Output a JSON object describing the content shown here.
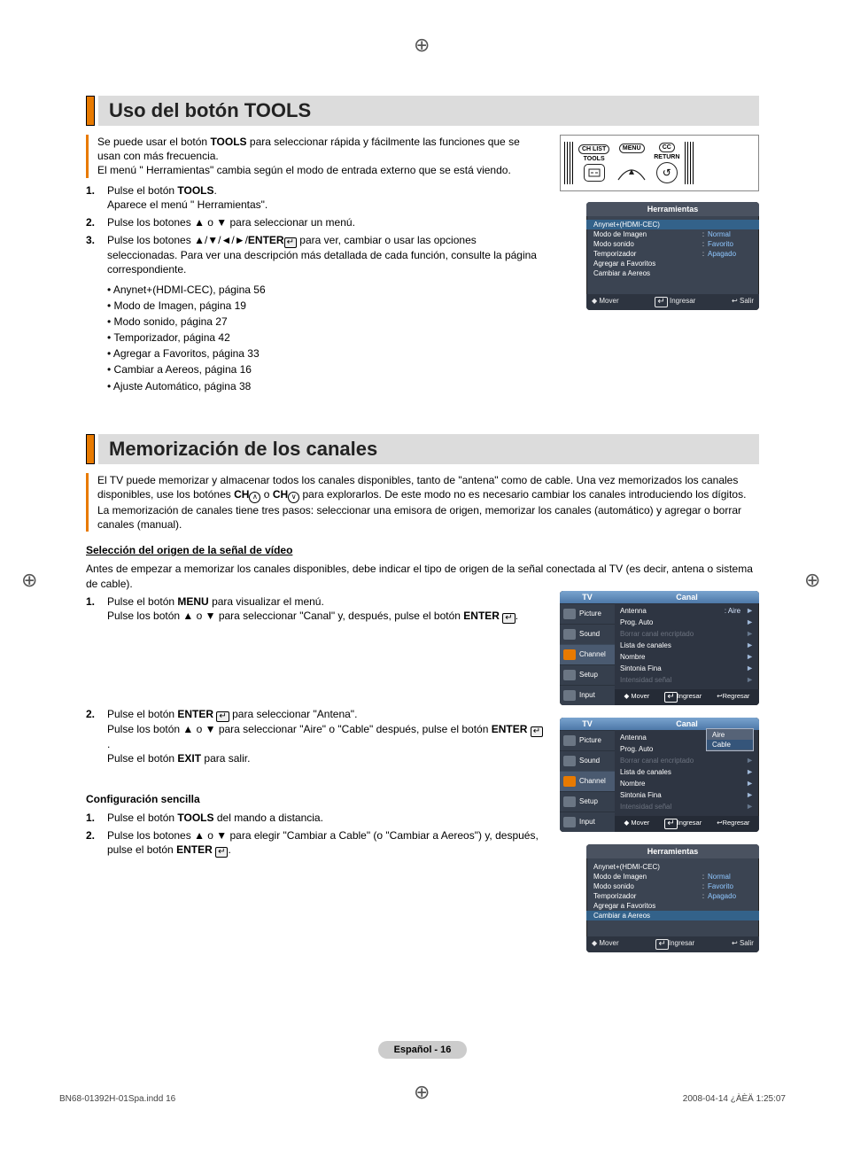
{
  "registration_marks": {
    "glyph": "⊕"
  },
  "section1": {
    "title": "Uso del botón TOOLS",
    "intro_p1a": "Se puede usar el botón ",
    "intro_bold": "TOOLS",
    "intro_p1b": " para seleccionar rápida y fácilmente las funciones que se usan con más frecuencia.",
    "intro_p2": "El menú \" Herramientas\" cambia según el modo de entrada externo que se está viendo.",
    "steps": [
      {
        "num": "1.",
        "body_a": "Pulse el botón ",
        "body_bold": "TOOLS",
        "body_b": ".",
        "line2": "Aparece el menú \" Herramientas\"."
      },
      {
        "num": "2.",
        "body": "Pulse los botones ▲ o ▼ para seleccionar un menú."
      },
      {
        "num": "3.",
        "body_a": "Pulse los botones ▲/▼/◄/►/",
        "body_bold": "ENTER",
        "body_b": " ",
        "body_c": " para ver, cambiar o usar las opciones seleccionadas. Para ver una descripción más detallada de cada función, consulte la página correspondiente."
      }
    ],
    "bullets": [
      "• Anynet+(HDMI-CEC), página 56",
      "• Modo de Imagen, página 19",
      "• Modo sonido, página 27",
      "• Temporizador, página 42",
      "• Agregar a Favoritos, página 33",
      "• Cambiar a Aereos, página 16",
      "• Ajuste Automático, página 38"
    ],
    "remote": {
      "chlist": "CH LIST",
      "menu": "MENU",
      "cc": "CC",
      "tools": "TOOLS",
      "return": "RETURN"
    },
    "osd": {
      "title": "Herramientas",
      "rows": [
        {
          "label": "Anynet+(HDMI-CEC)",
          "hl": true
        },
        {
          "label": "Modo de Imagen",
          "val": "Normal"
        },
        {
          "label": "Modo sonido",
          "val": "Favorito"
        },
        {
          "label": "Temporizador",
          "val": "Apagado"
        },
        {
          "label": "Agregar a Favoritos"
        },
        {
          "label": "Cambiar a Aereos"
        }
      ],
      "footer": {
        "move": "Mover",
        "enter": "Ingresar",
        "exit": "Salir"
      }
    }
  },
  "section2": {
    "title": "Memorización de los canales",
    "intro_a": "El TV puede memorizar y almacenar todos los canales disponibles, tanto de \"antena\" como de cable. Una vez memorizados los canales disponibles, use los botónes ",
    "intro_ch": "CH",
    "intro_b": " o ",
    "intro_c": " para explorarlos. De este modo no es necesario cambiar los canales introduciendo los dígitos. La memorización de canales tiene tres pasos: seleccionar una emisora de origen, memorizar los canales (automático) y agregar o borrar canales (manual).",
    "sub1": "Selección del origen de la señal de vídeo",
    "sub1_intro": "Antes de empezar a memorizar los canales disponibles, debe indicar el tipo de origen de la señal conectada al TV (es decir, antena o sistema de cable).",
    "sub1_steps": [
      {
        "num": "1.",
        "body_a": "Pulse el botón ",
        "bold1": "MENU",
        "body_b": " para visualizar el menú.",
        "line2_a": "Pulse los botón ▲ o ▼ para seleccionar \"Canal\" y, después, pulse el botón ",
        "bold2": "ENTER",
        "line2_b": "."
      },
      {
        "num": "2.",
        "body_a": "Pulse el botón ",
        "bold1": "ENTER",
        "body_b": " para seleccionar \"Antena\".",
        "line2_a": "Pulse los botón ▲ o ▼ para seleccionar \"Aire\" o \"Cable\" después, pulse el botón ",
        "bold2": "ENTER",
        "line2_b": ".",
        "line3_a": "Pulse el botón ",
        "bold3": "EXIT",
        "line3_b": " para salir."
      }
    ],
    "sub2": "Configuración sencilla",
    "sub2_steps": [
      {
        "num": "1.",
        "body_a": "Pulse el botón ",
        "bold1": "TOOLS",
        "body_b": " del mando a distancia."
      },
      {
        "num": "2.",
        "body_a": "Pulse los botones ▲ o ▼ para elegir \"Cambiar a Cable\" (o \"Cambiar a Aereos\") y, después, pulse el botón ",
        "bold1": "ENTER",
        "body_b": "."
      }
    ],
    "tvmenu_common": {
      "tvlabel": "TV",
      "maintitle": "Canal",
      "tabs": [
        "Picture",
        "Sound",
        "Channel",
        "Setup",
        "Input"
      ],
      "rows": [
        {
          "label": "Antenna",
          "val": ": Aire",
          "arrow": true
        },
        {
          "label": "Prog. Auto",
          "arrow": true
        },
        {
          "label": "Borrar canal encriptado",
          "dim": true,
          "arrow": true
        },
        {
          "label": "Lista de canales",
          "arrow": true
        },
        {
          "label": "Nombre",
          "arrow": true
        },
        {
          "label": "Sintonia Fina",
          "arrow": true
        },
        {
          "label": "Intensidad señal",
          "dim": true,
          "arrow": true
        }
      ],
      "footer": {
        "move": "Mover",
        "enter": "Ingresar",
        "return": "Regresar"
      }
    },
    "tvmenu2_dropdown": {
      "options": [
        "Aire",
        "Cable"
      ],
      "selected": "Cable"
    },
    "osd2": {
      "title": "Herramientas",
      "rows": [
        {
          "label": "Anynet+(HDMI-CEC)"
        },
        {
          "label": "Modo de Imagen",
          "val": "Normal"
        },
        {
          "label": "Modo sonido",
          "val": "Favorito"
        },
        {
          "label": "Temporizador",
          "val": "Apagado"
        },
        {
          "label": "Agregar a Favoritos"
        },
        {
          "label": "Cambiar a Aereos",
          "hl": true
        }
      ],
      "footer": {
        "move": "Mover",
        "enter": "Ingresar",
        "exit": "Salir"
      }
    }
  },
  "footer": {
    "page_label": "Español - 16",
    "doc_file": "BN68-01392H-01Spa.indd   16",
    "doc_time": "2008-04-14   ¿ÀÈÄ 1:25:07"
  },
  "icons": {
    "enter_glyph": "↵",
    "updown": "◆",
    "return_glyph": "↺",
    "ch_up": "∧",
    "ch_dn": "∨"
  }
}
